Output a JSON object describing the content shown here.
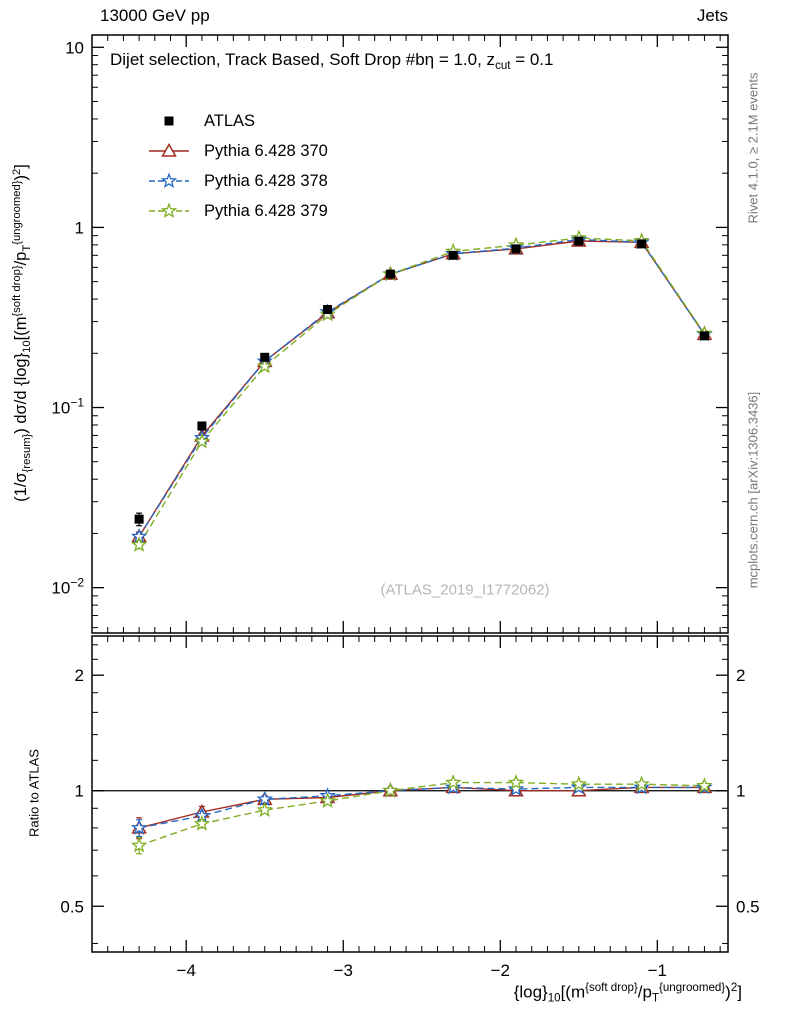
{
  "header": {
    "left": "13000 GeV pp",
    "right": "Jets"
  },
  "side_notes": {
    "top_right": "Rivet 4.1.0, ≥ 2.1M events",
    "bottom_right": "mcplots.cern.ch [arXiv:1306.3436]"
  },
  "watermark": "(ATLAS_2019_I1772062)",
  "ratio_axis_label": "Ratio to ATLAS",
  "labels": {
    "title_segments": [
      [
        "Dijet selection, Track Based, Soft Drop #bη = 1.0, z",
        "n"
      ],
      [
        "cut",
        "d"
      ],
      [
        " = 0.1",
        "n"
      ]
    ],
    "y_main_segments": [
      [
        "(1/σ",
        "n"
      ],
      [
        "{resum}",
        "d"
      ],
      [
        ") dσ/d {log}",
        "n"
      ],
      [
        "10",
        "d"
      ],
      [
        "[(m",
        "n"
      ],
      [
        "{soft drop}",
        "u"
      ],
      [
        "/p",
        "n"
      ],
      [
        "T",
        "d"
      ],
      [
        "{ungroomed}",
        "u"
      ],
      [
        ")",
        "n"
      ],
      [
        "2",
        "u"
      ],
      [
        "]",
        "n"
      ]
    ],
    "x_segments": [
      [
        "{log}",
        "n"
      ],
      [
        "10",
        "d"
      ],
      [
        "[(m",
        "n"
      ],
      [
        "{soft drop}",
        "u"
      ],
      [
        "/p",
        "n"
      ],
      [
        "T",
        "d"
      ],
      [
        "{ungroomed}",
        "u"
      ],
      [
        ")",
        "n"
      ],
      [
        "2",
        "u"
      ],
      [
        "]",
        "n"
      ]
    ]
  },
  "chart_data": {
    "type": "line",
    "title": "Dijet selection, Track Based, Soft Drop #bη = 1.0, z_cut = 0.1",
    "xlabel": "{log}_10[(m^{soft drop}/p_T^{ungroomed})^2]",
    "ylabel": "(1/σ_{resum}) dσ/d {log}_10[(m^{soft drop}/p_T^{ungroomed})^2]",
    "ratio_ylabel": "Ratio to ATLAS",
    "legend_position": "top-left",
    "grid": false,
    "x": [
      -4.3,
      -3.9,
      -3.5,
      -3.1,
      -2.7,
      -2.3,
      -1.9,
      -1.5,
      -1.1,
      -0.7
    ],
    "xlim": [
      -4.6,
      -0.55
    ],
    "ylim_main": [
      0.0056,
      11.7
    ],
    "ylim_ratio": [
      0.38,
      2.53
    ],
    "x_ticks": [
      -4,
      -3,
      -2,
      -1
    ],
    "x_tick_labels": [
      "−4",
      "−3",
      "−2",
      "−1"
    ],
    "y_ticks_main": [
      {
        "v": 10,
        "base": "10",
        "exp": ""
      },
      {
        "v": 1,
        "base": "1",
        "exp": ""
      },
      {
        "v": 0.1,
        "base": "10",
        "exp": "−1"
      },
      {
        "v": 0.01,
        "base": "10",
        "exp": "−2"
      }
    ],
    "y_ticks_ratio": [
      {
        "v": 2,
        "label": "2"
      },
      {
        "v": 1,
        "label": "1"
      },
      {
        "v": 0.5,
        "label": "0.5"
      }
    ],
    "series": [
      {
        "name": "ATLAS",
        "color": "#000000",
        "marker": "square",
        "line": "none",
        "values": [
          0.024,
          0.079,
          0.19,
          0.35,
          0.55,
          0.7,
          0.76,
          0.84,
          0.81,
          0.25
        ],
        "err_rel": [
          0.08,
          0.05,
          0.03,
          0.02,
          0.015,
          0.015,
          0.015,
          0.015,
          0.015,
          0.02
        ]
      },
      {
        "name": "Pythia 6.428 370",
        "color": "#a02c20",
        "marker": "triangle-open",
        "line": "solid",
        "ratio": [
          0.8,
          0.88,
          0.95,
          0.96,
          1.0,
          1.02,
          1.0,
          1.0,
          1.02,
          1.02
        ],
        "ratio_err": [
          0.05,
          0.03,
          0.02,
          0.012,
          0.01,
          0.01,
          0.01,
          0.01,
          0.012,
          0.02
        ]
      },
      {
        "name": "Pythia 6.428 378",
        "color": "#2667c4",
        "marker": "star",
        "line": "dashed",
        "ratio": [
          0.8,
          0.86,
          0.95,
          0.97,
          1.0,
          1.02,
          1.01,
          1.02,
          1.02,
          1.02
        ],
        "ratio_err": [
          0.04,
          0.025,
          0.015,
          0.01,
          0.008,
          0.008,
          0.008,
          0.01,
          0.01,
          0.015
        ]
      },
      {
        "name": "Pythia 6.428 379",
        "color": "#7fae22",
        "marker": "star",
        "line": "dashed",
        "ratio": [
          0.72,
          0.82,
          0.89,
          0.94,
          1.0,
          1.05,
          1.05,
          1.04,
          1.04,
          1.03
        ],
        "ratio_err": [
          0.035,
          0.02,
          0.012,
          0.01,
          0.008,
          0.008,
          0.008,
          0.01,
          0.01,
          0.015
        ]
      }
    ]
  }
}
